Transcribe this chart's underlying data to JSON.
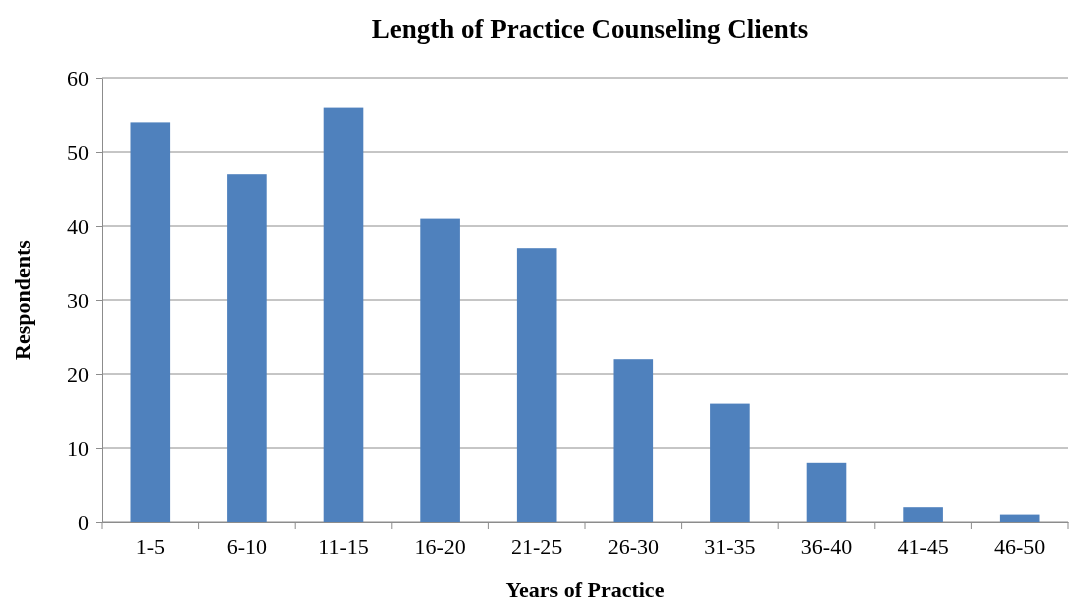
{
  "chart_data": {
    "type": "bar",
    "title": "Length of Practice Counseling Clients",
    "xlabel": "Years of Practice",
    "ylabel": "Respondents",
    "categories": [
      "1-5",
      "6-10",
      "11-15",
      "16-20",
      "21-25",
      "26-30",
      "31-35",
      "36-40",
      "41-45",
      "46-50"
    ],
    "values": [
      54,
      47,
      56,
      41,
      37,
      22,
      16,
      8,
      2,
      1
    ],
    "color": "#4f81bd",
    "ylim": [
      0,
      60
    ],
    "yticks": [
      0,
      10,
      20,
      30,
      40,
      50,
      60
    ],
    "grid": "y"
  }
}
